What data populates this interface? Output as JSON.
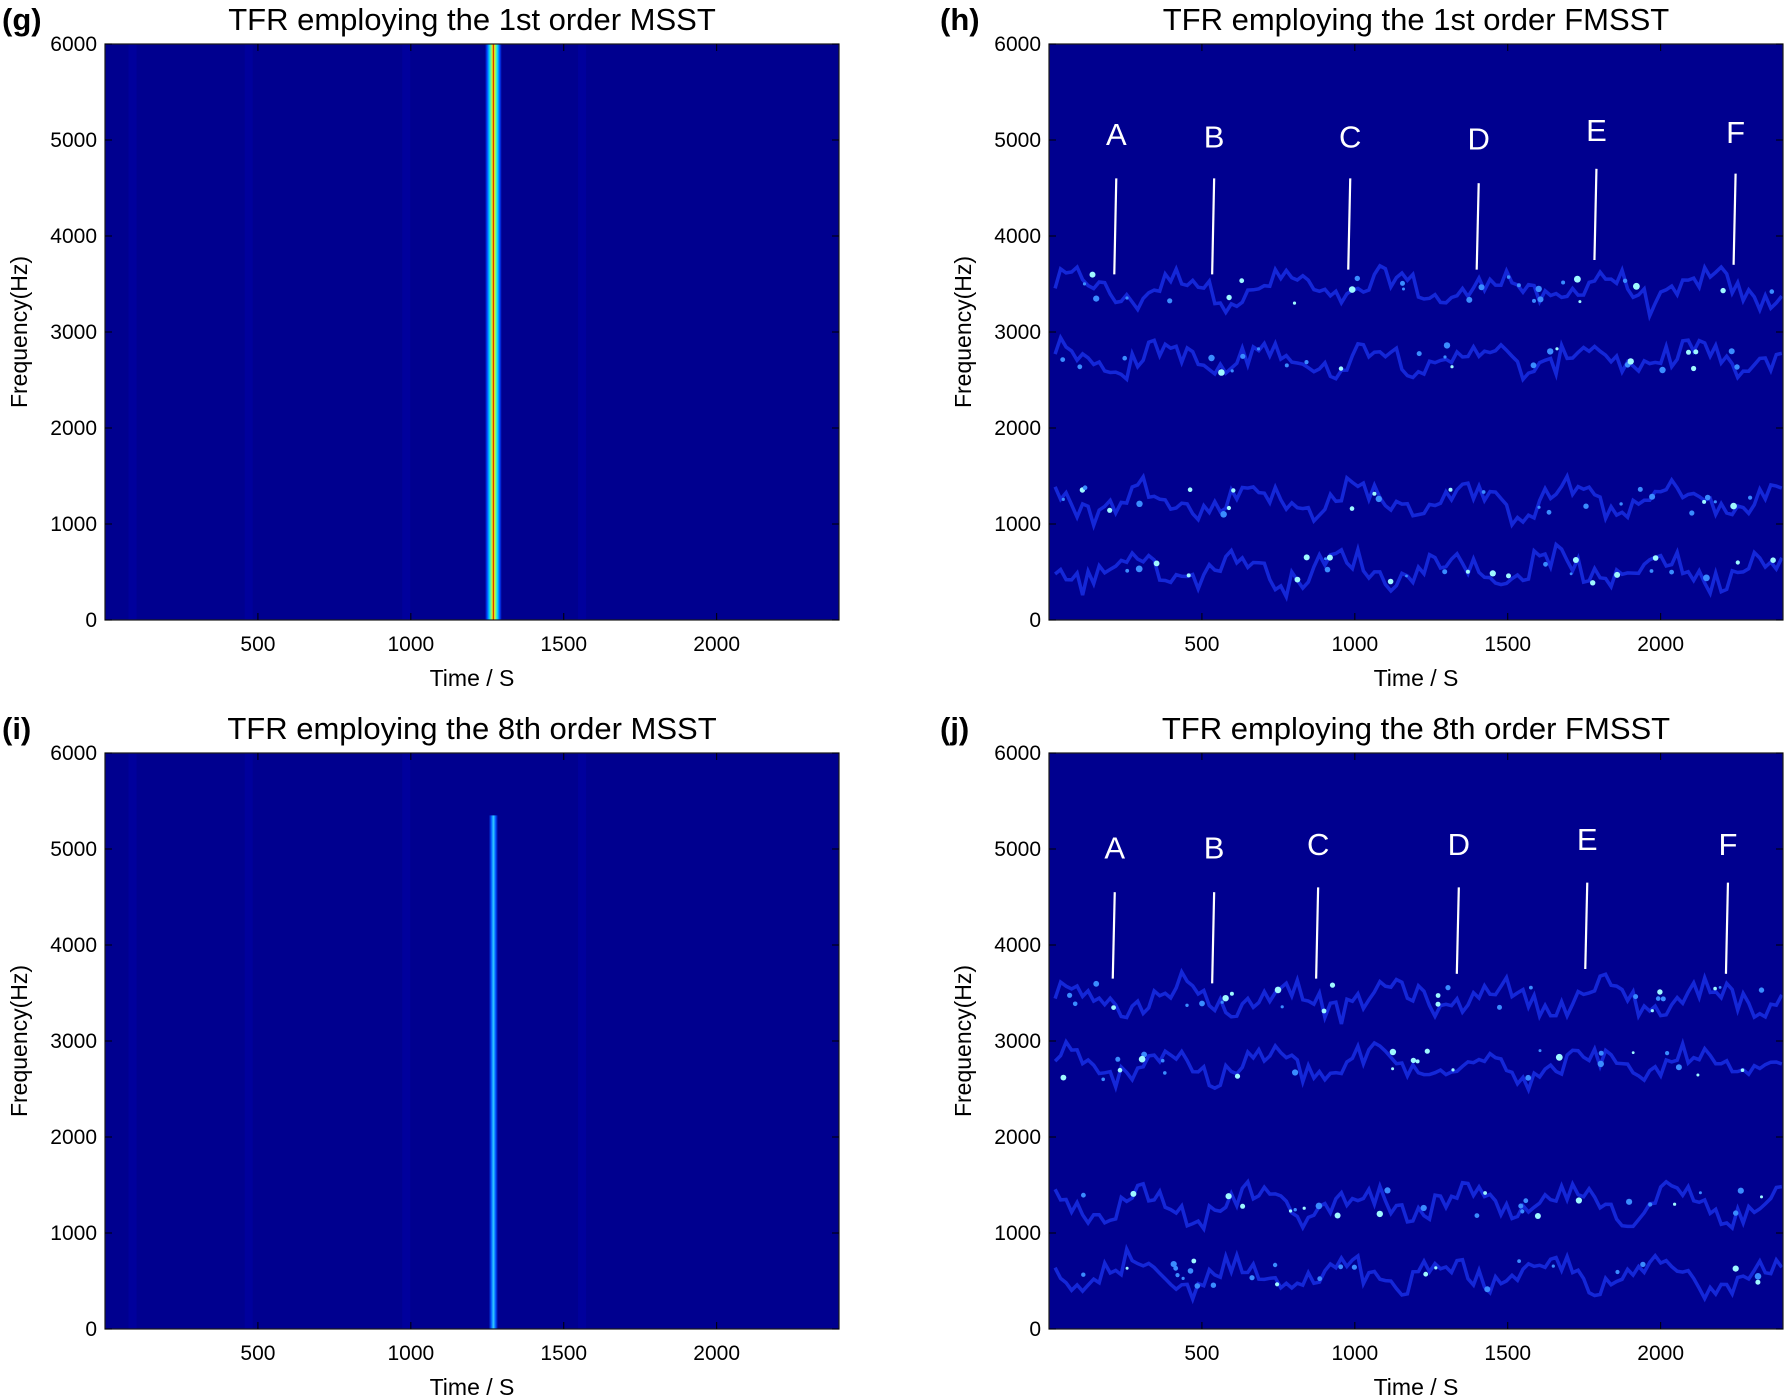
{
  "colors": {
    "background": "#00008f",
    "frame": "#1a1a1a",
    "annotation": "#ffffff",
    "colormap": "jet"
  },
  "chart_data": [
    {
      "panel_label": "(g)",
      "type": "heatmap",
      "title": "TFR employing the 1st order MSST",
      "xlabel": "Time / S",
      "ylabel": "Frequency(Hz)",
      "xlim": [
        0,
        2400
      ],
      "ylim": [
        0,
        6000
      ],
      "xticks": [
        500,
        1000,
        1500,
        2000
      ],
      "yticks": [
        0,
        1000,
        2000,
        3000,
        4000,
        5000,
        6000
      ],
      "vertical_band": {
        "x_center": 1270,
        "width": 55,
        "y_from": 0,
        "y_to": 6000,
        "style": "jet-full"
      },
      "faint_verticals": [
        90,
        470,
        985,
        1560
      ],
      "ridges": [],
      "annotations": []
    },
    {
      "panel_label": "(h)",
      "type": "heatmap",
      "title": "TFR employing the 1st order FMSST",
      "xlabel": "Time / S",
      "ylabel": "Frequency(Hz)",
      "xlim": [
        0,
        2400
      ],
      "ylim": [
        0,
        6000
      ],
      "xticks": [
        500,
        1000,
        1500,
        2000
      ],
      "yticks": [
        0,
        1000,
        2000,
        3000,
        4000,
        5000,
        6000
      ],
      "vertical_band": null,
      "faint_verticals": [],
      "ridges": [
        3450,
        2720,
        1250,
        530
      ],
      "annotations": [
        {
          "label": "A",
          "x": 220,
          "text_y": 4950,
          "line_top_y": 4600,
          "line_bottom_y": 3600
        },
        {
          "label": "B",
          "x": 540,
          "text_y": 4920,
          "line_top_y": 4600,
          "line_bottom_y": 3600
        },
        {
          "label": "C",
          "x": 985,
          "text_y": 4920,
          "line_top_y": 4600,
          "line_bottom_y": 3650
        },
        {
          "label": "D",
          "x": 1405,
          "text_y": 4900,
          "line_top_y": 4550,
          "line_bottom_y": 3650
        },
        {
          "label": "E",
          "x": 1790,
          "text_y": 4990,
          "line_top_y": 4700,
          "line_bottom_y": 3750
        },
        {
          "label": "F",
          "x": 2245,
          "text_y": 4970,
          "line_top_y": 4650,
          "line_bottom_y": 3700
        }
      ]
    },
    {
      "panel_label": "(i)",
      "type": "heatmap",
      "title": "TFR employing the 8th order MSST",
      "xlabel": "Time / S",
      "ylabel": "Frequency(Hz)",
      "xlim": [
        0,
        2400
      ],
      "ylim": [
        0,
        6000
      ],
      "xticks": [
        500,
        1000,
        1500,
        2000
      ],
      "yticks": [
        0,
        1000,
        2000,
        3000,
        4000,
        5000,
        6000
      ],
      "vertical_band": {
        "x_center": 1270,
        "width": 30,
        "y_from": 0,
        "y_to": 5350,
        "style": "jet-cyan"
      },
      "faint_verticals": [
        90,
        470,
        985,
        1560
      ],
      "ridges": [],
      "annotations": []
    },
    {
      "panel_label": "(j)",
      "type": "heatmap",
      "title": "TFR employing the 8th order FMSST",
      "xlabel": "Time / S",
      "ylabel": "Frequency(Hz)",
      "xlim": [
        0,
        2400
      ],
      "ylim": [
        0,
        6000
      ],
      "xticks": [
        500,
        1000,
        1500,
        2000
      ],
      "yticks": [
        0,
        1000,
        2000,
        3000,
        4000,
        5000,
        6000
      ],
      "vertical_band": null,
      "faint_verticals": [],
      "ridges": [
        3450,
        2750,
        1300,
        560
      ],
      "annotations": [
        {
          "label": "A",
          "x": 215,
          "text_y": 4900,
          "line_top_y": 4550,
          "line_bottom_y": 3650
        },
        {
          "label": "B",
          "x": 540,
          "text_y": 4900,
          "line_top_y": 4550,
          "line_bottom_y": 3600
        },
        {
          "label": "C",
          "x": 880,
          "text_y": 4940,
          "line_top_y": 4600,
          "line_bottom_y": 3650
        },
        {
          "label": "D",
          "x": 1340,
          "text_y": 4940,
          "line_top_y": 4600,
          "line_bottom_y": 3700
        },
        {
          "label": "E",
          "x": 1760,
          "text_y": 4990,
          "line_top_y": 4650,
          "line_bottom_y": 3750
        },
        {
          "label": "F",
          "x": 2220,
          "text_y": 4940,
          "line_top_y": 4650,
          "line_bottom_y": 3700
        }
      ]
    }
  ]
}
